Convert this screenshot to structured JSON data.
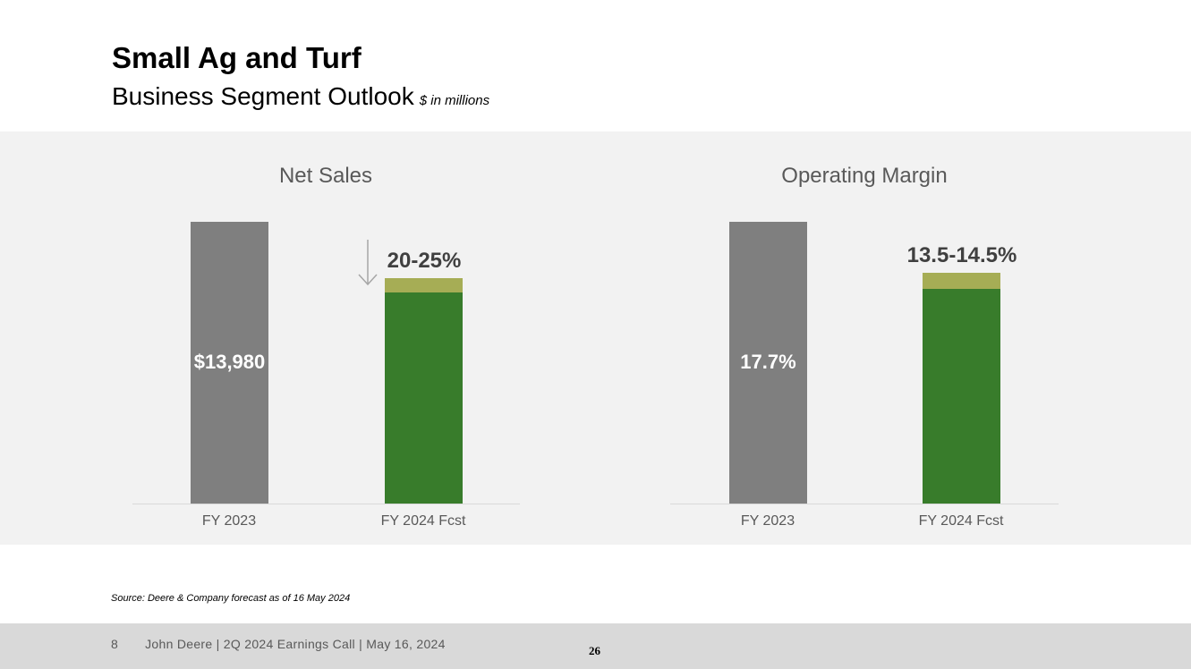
{
  "header": {
    "title": "Small Ag and Turf",
    "subtitle": "Business Segment Outlook",
    "unit_note": "$ in millions"
  },
  "colors": {
    "actual": "#7f7f7f",
    "forecast_low": "#387c2b",
    "forecast_range": "#a6ad55"
  },
  "chart_data": [
    {
      "type": "bar",
      "title": "Net Sales",
      "categories": [
        "FY 2023",
        "FY 2024 Fcst"
      ],
      "values": [
        13980,
        [
          10485,
          11184
        ]
      ],
      "labels": [
        "$13,980",
        "20-25%"
      ],
      "annotation": "down-arrow",
      "ylim": [
        0,
        13980
      ]
    },
    {
      "type": "bar",
      "title": "Operating Margin",
      "categories": [
        "FY 2023",
        "FY 2024 Fcst"
      ],
      "values": [
        17.7,
        [
          13.5,
          14.5
        ]
      ],
      "labels": [
        "17.7%",
        "13.5-14.5%"
      ],
      "ylim": [
        0,
        17.7
      ]
    }
  ],
  "source": "Source: Deere & Company forecast as of 16 May 2024",
  "footer": {
    "slide_no": "8",
    "text": "John Deere | 2Q 2024 Earnings Call | May 16, 2024",
    "page": "26"
  }
}
